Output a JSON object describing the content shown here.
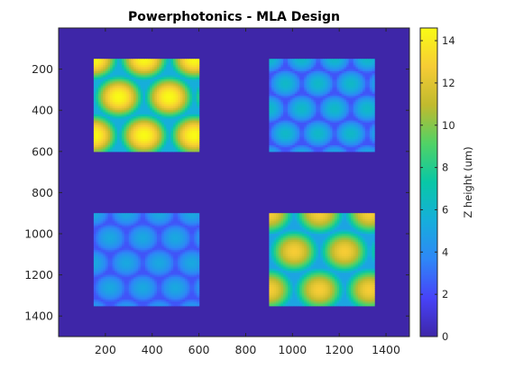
{
  "chart_data": {
    "type": "heatmap",
    "title": "Powerphotonics - MLA Design",
    "xlabel": "",
    "ylabel": "",
    "xlim": [
      0,
      1500
    ],
    "ylim": [
      1500,
      0
    ],
    "y_reversed": true,
    "x_ticks": [
      200,
      400,
      600,
      800,
      1000,
      1200,
      1400
    ],
    "y_ticks": [
      200,
      400,
      600,
      800,
      1000,
      1200,
      1400
    ],
    "grid": false,
    "colormap": "parula",
    "background_value": 0,
    "colorbar": {
      "label": "Z height (um)",
      "range": [
        0,
        14.6
      ],
      "ticks": [
        0,
        2,
        4,
        6,
        8,
        10,
        12,
        14
      ],
      "placement": "right"
    },
    "lens_arrays": [
      {
        "name": "top-left",
        "x_range": [
          150,
          600
        ],
        "y_range": [
          150,
          600
        ],
        "pitch": 215,
        "max_height": 14.6,
        "min_height": 5.5
      },
      {
        "name": "top-right",
        "x_range": [
          900,
          1350
        ],
        "y_range": [
          150,
          600
        ],
        "pitch": 140,
        "max_height": 6.2,
        "min_height": 2.3
      },
      {
        "name": "bottom-left",
        "x_range": [
          150,
          600
        ],
        "y_range": [
          900,
          1350
        ],
        "pitch": 140,
        "max_height": 5.2,
        "min_height": 2.3
      },
      {
        "name": "bottom-right",
        "x_range": [
          900,
          1350
        ],
        "y_range": [
          900,
          1350
        ],
        "pitch": 215,
        "max_height": 12.8,
        "min_height": 5.0
      }
    ],
    "colors": {
      "background": "#3e26a8",
      "frame": "#262626"
    }
  }
}
